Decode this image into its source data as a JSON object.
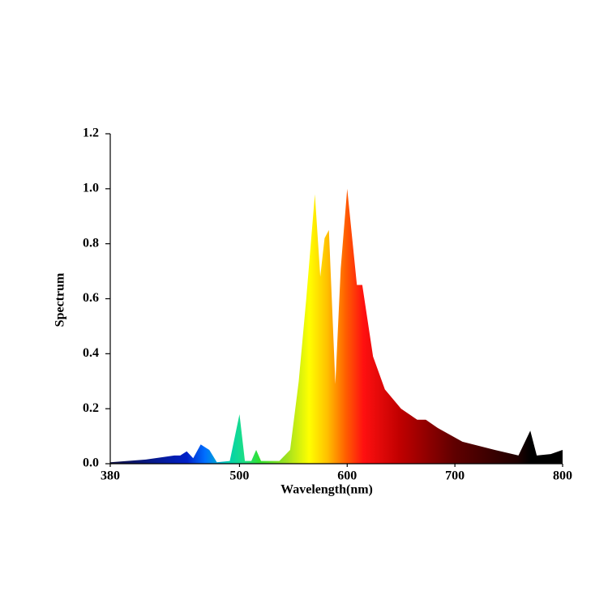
{
  "chart_data": {
    "type": "area",
    "xlabel": "Wavelength(nm)",
    "ylabel": "Spectrum",
    "x": [
      380,
      413,
      439.5,
      445,
      451,
      457,
      464,
      472,
      479,
      491,
      500,
      505,
      511,
      515.5,
      520,
      537,
      547,
      555,
      562,
      570,
      575,
      579,
      583,
      589,
      594,
      600,
      609,
      614,
      624,
      635,
      650,
      665,
      673,
      684,
      707,
      737,
      759,
      770,
      776,
      789,
      800
    ],
    "y": [
      0.005,
      0.015,
      0.03,
      0.03,
      0.045,
      0.02,
      0.07,
      0.05,
      0.005,
      0.01,
      0.18,
      0.01,
      0.01,
      0.05,
      0.01,
      0.01,
      0.05,
      0.3,
      0.6,
      0.98,
      0.68,
      0.82,
      0.85,
      0.29,
      0.71,
      1.0,
      0.65,
      0.65,
      0.39,
      0.27,
      0.2,
      0.16,
      0.16,
      0.13,
      0.08,
      0.05,
      0.03,
      0.12,
      0.03,
      0.035,
      0.05
    ],
    "xlim": [
      380,
      800
    ],
    "xticks": [
      380,
      500,
      600,
      700,
      800
    ],
    "ylim": [
      0,
      1.2
    ],
    "yticks": [
      {
        "value": 0,
        "label": "0.0"
      },
      0.2,
      0.4,
      0.6,
      0.8,
      {
        "value": 1,
        "label": "1.0"
      },
      1.2
    ]
  }
}
